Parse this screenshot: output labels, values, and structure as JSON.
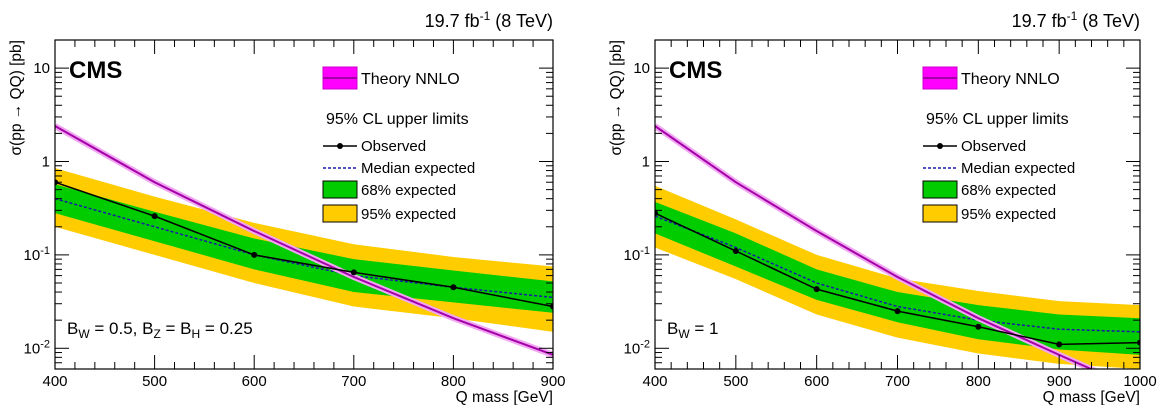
{
  "chart_data": [
    {
      "type": "line",
      "title": "",
      "xlabel": "Q mass [GeV]",
      "ylabel": "σ(pp → QQ) [pb]",
      "xlim": [
        400,
        900
      ],
      "ylim": [
        0.006,
        20
      ],
      "yscale": "log",
      "x_ticks": [
        "400",
        "500",
        "600",
        "700",
        "800",
        "900"
      ],
      "lumi_label": {
        "base": "19.7 fb",
        "sup": "-1",
        "rest": " (8 TeV)"
      },
      "experiment_label": "CMS",
      "annotation": {
        "base": "B",
        "bw_sub": "W",
        "bw_val": " = 0.5, B",
        "bz_sub": "Z",
        "mid": " = B",
        "bh_sub": "H",
        "tail": " = 0.25"
      },
      "legend_title": "95% CL upper limits",
      "legend": [
        "Theory NNLO",
        "Observed",
        "Median expected",
        "68% expected",
        "95% expected"
      ],
      "series": [
        {
          "name": "Theory NNLO",
          "color": "#a300a8",
          "x": [
            400,
            500,
            600,
            700,
            800,
            900
          ],
          "y": [
            2.4,
            0.6,
            0.18,
            0.058,
            0.021,
            0.0085
          ]
        },
        {
          "name": "Observed",
          "color": "#000000",
          "x": [
            400,
            500,
            600,
            700,
            800,
            900
          ],
          "y": [
            0.6,
            0.26,
            0.1,
            0.065,
            0.045,
            0.028
          ]
        },
        {
          "name": "Median expected",
          "color": "#1a1aaa",
          "x": [
            400,
            500,
            600,
            700,
            800,
            900
          ],
          "y": [
            0.4,
            0.2,
            0.1,
            0.06,
            0.045,
            0.035
          ]
        },
        {
          "name": "68% expected",
          "color": "#00cc00",
          "x": [
            400,
            500,
            600,
            700,
            800,
            900
          ],
          "low": [
            0.28,
            0.14,
            0.07,
            0.04,
            0.031,
            0.024
          ],
          "high": [
            0.57,
            0.29,
            0.15,
            0.09,
            0.068,
            0.052
          ]
        },
        {
          "name": "95% expected",
          "color": "#ffcc00",
          "x": [
            400,
            500,
            600,
            700,
            800,
            900
          ],
          "low": [
            0.2,
            0.1,
            0.05,
            0.028,
            0.021,
            0.015
          ],
          "high": [
            0.85,
            0.42,
            0.22,
            0.13,
            0.095,
            0.075
          ]
        }
      ]
    },
    {
      "type": "line",
      "title": "",
      "xlabel": "Q mass [GeV]",
      "ylabel": "σ(pp → QQ) [pb]",
      "xlim": [
        400,
        1000
      ],
      "ylim": [
        0.006,
        20
      ],
      "yscale": "log",
      "x_ticks": [
        "400",
        "500",
        "600",
        "700",
        "800",
        "900",
        "1000"
      ],
      "lumi_label": {
        "base": "19.7 fb",
        "sup": "-1",
        "rest": " (8 TeV)"
      },
      "experiment_label": "CMS",
      "annotation": {
        "base": "B",
        "bw_sub": "W",
        "tail": " = 1"
      },
      "legend_title": "95% CL upper limits",
      "legend": [
        "Theory NNLO",
        "Observed",
        "Median expected",
        "68% expected",
        "95% expected"
      ],
      "series": [
        {
          "name": "Theory NNLO",
          "color": "#a300a8",
          "x": [
            400,
            500,
            600,
            700,
            800,
            900,
            960
          ],
          "y": [
            2.4,
            0.6,
            0.18,
            0.058,
            0.021,
            0.0085,
            0.005
          ]
        },
        {
          "name": "Observed",
          "color": "#000000",
          "x": [
            400,
            500,
            600,
            700,
            800,
            900,
            1000
          ],
          "y": [
            0.28,
            0.11,
            0.043,
            0.025,
            0.017,
            0.011,
            0.0115
          ]
        },
        {
          "name": "Median expected",
          "color": "#1a1aaa",
          "x": [
            400,
            500,
            600,
            700,
            800,
            900,
            1000
          ],
          "y": [
            0.26,
            0.12,
            0.05,
            0.028,
            0.02,
            0.016,
            0.015
          ]
        },
        {
          "name": "68% expected",
          "color": "#00cc00",
          "x": [
            400,
            500,
            600,
            700,
            800,
            900,
            1000
          ],
          "low": [
            0.17,
            0.075,
            0.033,
            0.019,
            0.0125,
            0.0097,
            0.0085
          ],
          "high": [
            0.37,
            0.17,
            0.07,
            0.04,
            0.029,
            0.023,
            0.021
          ]
        },
        {
          "name": "95% expected",
          "color": "#ffcc00",
          "x": [
            400,
            500,
            600,
            700,
            800,
            900,
            1000
          ],
          "low": [
            0.12,
            0.055,
            0.023,
            0.013,
            0.0088,
            0.0068,
            0.006
          ],
          "high": [
            0.55,
            0.24,
            0.1,
            0.056,
            0.041,
            0.032,
            0.029
          ]
        }
      ]
    }
  ]
}
